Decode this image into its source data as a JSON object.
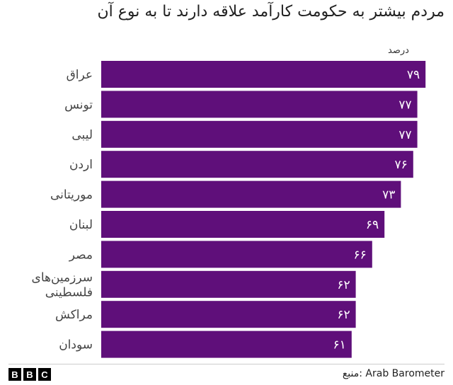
{
  "chart_data": {
    "type": "bar",
    "orientation": "horizontal",
    "title": "مردم بیشتر به حکومت کارآمد علاقه دارند تا به نوع آن",
    "unit_label": "درصد",
    "categories": [
      "عراق",
      "تونس",
      "لیبی",
      "اردن",
      "موریتانی",
      "لبنان",
      "مصر",
      "سرزمین‌های فلسطینی",
      "مراکش",
      "سودان"
    ],
    "category_lines": [
      [
        "عراق"
      ],
      [
        "تونس"
      ],
      [
        "لیبی"
      ],
      [
        "اردن"
      ],
      [
        "موریتانی"
      ],
      [
        "لبنان"
      ],
      [
        "مصر"
      ],
      [
        "سرزمین‌های",
        "فلسطینی"
      ],
      [
        "مراکش"
      ],
      [
        "سودان"
      ]
    ],
    "values": [
      79,
      77,
      77,
      76,
      73,
      69,
      66,
      62,
      62,
      61
    ],
    "value_labels": [
      "۷۹",
      "۷۷",
      "۷۷",
      "۷۶",
      "۷۳",
      "۶۹",
      "۶۶",
      "۶۲",
      "۶۲",
      "۶۱"
    ],
    "bar_color": "#5f0f7a",
    "label_color": "#ffffff",
    "grid": false
  },
  "footer": {
    "source": "منبع: Arab Barometer",
    "logo_letters": [
      "B",
      "B",
      "C"
    ]
  }
}
